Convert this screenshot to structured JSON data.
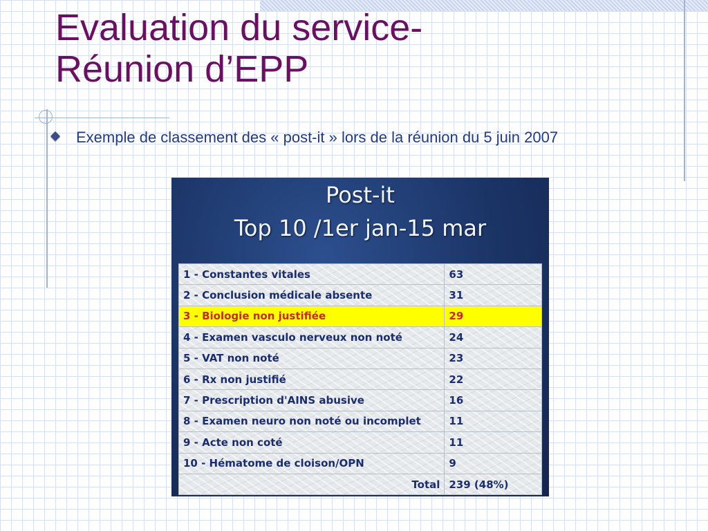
{
  "slide": {
    "title_line1": "Evaluation du service-",
    "title_line2": "Réunion d’EPP",
    "bullet_text": "Exemple de classement des « post-it » lors de la réunion du 5 juin 2007"
  },
  "panel": {
    "heading": "Post-it",
    "subheading": "Top 10 /1er jan-15 mar",
    "rows": [
      {
        "label": "1 - Constantes vitales",
        "value": "63"
      },
      {
        "label": "2 - Conclusion médicale absente",
        "value": "31"
      },
      {
        "label": "3 - Biologie non justifiée",
        "value": "29"
      },
      {
        "label": "4 - Examen vasculo nerveux non noté",
        "value": "24"
      },
      {
        "label": "5 - VAT non noté",
        "value": "23"
      },
      {
        "label": "6 - Rx non justifié",
        "value": "22"
      },
      {
        "label": "7 - Prescription d'AINS abusive",
        "value": "16"
      },
      {
        "label": "8 - Examen neuro non noté ou incomplet",
        "value": "11"
      },
      {
        "label": "9 - Acte non coté",
        "value": "11"
      },
      {
        "label": "10 - Hématome de cloison/OPN",
        "value": "9"
      }
    ],
    "total_label": "Total",
    "total_value": "239 (48%)"
  },
  "colors": {
    "title": "#6b0f62",
    "bullet_text": "#1f3a8a",
    "highlight_bg": "#ffff00",
    "highlight_text": "#c8281e",
    "table_text": "#1a2d6e"
  }
}
